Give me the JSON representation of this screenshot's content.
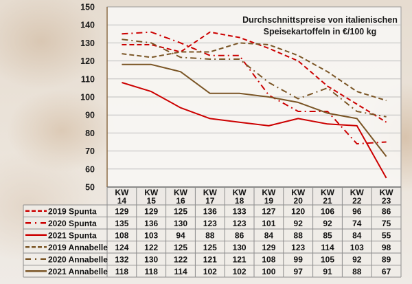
{
  "chart_data": {
    "type": "line",
    "title": [
      "Durchschnittspreise von italienischen",
      "Speisekartoffeln in €/100 kg"
    ],
    "xlabel": "",
    "ylabel": "",
    "ylim": [
      50,
      150
    ],
    "yticks": [
      150,
      140,
      130,
      120,
      110,
      100,
      90,
      80,
      70,
      60,
      50
    ],
    "grid": true,
    "legend": "bottom-left (data table)",
    "categories": [
      {
        "line1": "KW",
        "line2": "14"
      },
      {
        "line1": "KW",
        "line2": "15"
      },
      {
        "line1": "KW",
        "line2": "16"
      },
      {
        "line1": "KW",
        "line2": "17"
      },
      {
        "line1": "KW",
        "line2": "18"
      },
      {
        "line1": "KW",
        "line2": "19"
      },
      {
        "line1": "KW",
        "line2": "20"
      },
      {
        "line1": "KW",
        "line2": "21"
      },
      {
        "line1": "KW",
        "line2": "22"
      },
      {
        "line1": "KW",
        "line2": "23"
      }
    ],
    "series": [
      {
        "name": "2019 Spunta",
        "color": "#cc0000",
        "style": "dashed",
        "values": [
          129,
          129,
          125,
          136,
          133,
          127,
          120,
          106,
          96,
          86
        ]
      },
      {
        "name": "2020 Spunta",
        "color": "#cc0000",
        "style": "dashdot",
        "values": [
          135,
          136,
          130,
          123,
          123,
          101,
          92,
          92,
          74,
          75
        ]
      },
      {
        "name": "2021 Spunta",
        "color": "#cc0000",
        "style": "solid",
        "values": [
          108,
          103,
          94,
          88,
          86,
          84,
          88,
          85,
          84,
          55
        ]
      },
      {
        "name": "2019 Annabelle",
        "color": "#7a5525",
        "style": "dashed",
        "values": [
          124,
          122,
          125,
          125,
          130,
          129,
          123,
          114,
          103,
          98
        ]
      },
      {
        "name": "2020 Annabelle",
        "color": "#7a5525",
        "style": "dashdot",
        "values": [
          132,
          130,
          122,
          121,
          121,
          108,
          99,
          105,
          92,
          89
        ]
      },
      {
        "name": "2021 Annabelle",
        "color": "#7a5525",
        "style": "solid",
        "values": [
          118,
          118,
          114,
          102,
          102,
          100,
          97,
          91,
          88,
          67
        ]
      }
    ]
  }
}
